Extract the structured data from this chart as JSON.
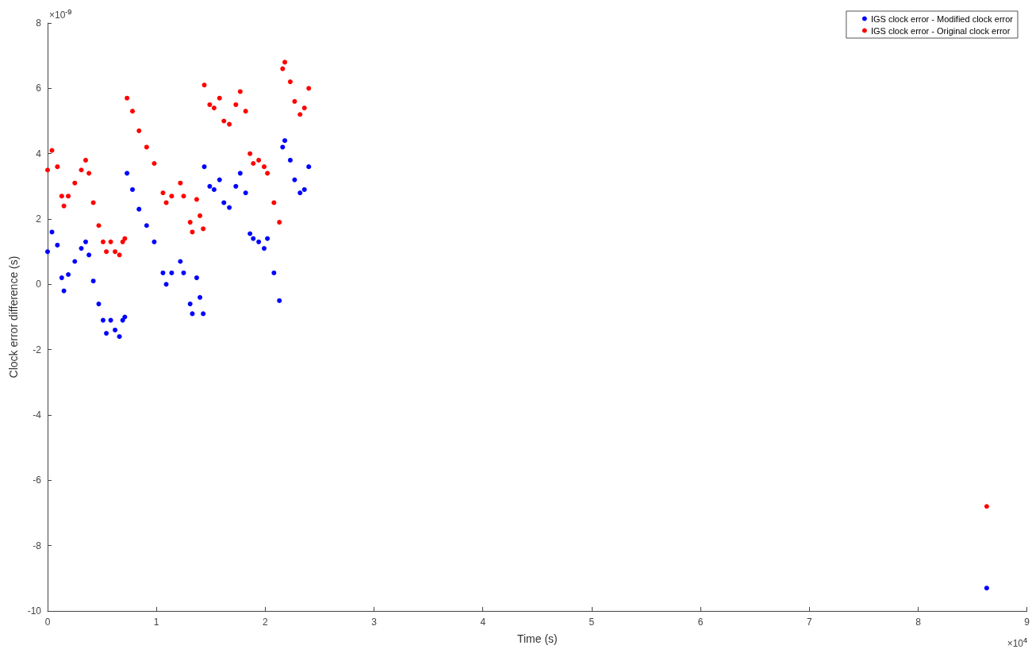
{
  "chart_data": {
    "type": "scatter",
    "xlabel": "Time (s)",
    "ylabel": "Clock error difference (s)",
    "xlim": [
      0,
      9
    ],
    "xticks": [
      0,
      1,
      2,
      3,
      4,
      5,
      6,
      7,
      8,
      9
    ],
    "ylim": [
      -10,
      8
    ],
    "yticks": [
      -10,
      -8,
      -6,
      -4,
      -2,
      0,
      2,
      4,
      6,
      8
    ],
    "annotations": [
      "×10$^{-9}$",
      "×10$^{4}$"
    ],
    "grid": false,
    "legend": "top right",
    "marker": "circle",
    "series": [
      {
        "name": "IGS clock error - Modified clock error",
        "color": "#0000ff",
        "x": [
          0,
          0.04,
          0.09,
          0.13,
          0.15,
          0.19,
          0.25,
          0.31,
          0.35,
          0.38,
          0.42,
          0.47,
          0.51,
          0.54,
          0.58,
          0.62,
          0.66,
          0.69,
          0.71,
          0.73,
          0.78,
          0.84,
          0.91,
          0.98,
          1.06,
          1.09,
          1.14,
          1.22,
          1.25,
          1.31,
          1.33,
          1.37,
          1.4,
          1.43,
          1.44,
          1.49,
          1.53,
          1.58,
          1.62,
          1.67,
          1.73,
          1.77,
          1.82,
          1.86,
          1.89,
          1.94,
          1.99,
          2.02,
          2.08,
          2.13,
          2.16,
          2.18,
          2.23,
          2.27,
          2.32,
          2.36,
          2.4,
          8.63
        ],
        "values": [
          1.0,
          1.6,
          1.2,
          0.2,
          -0.2,
          0.3,
          0.7,
          1.1,
          1.3,
          0.9,
          0.1,
          -0.6,
          -1.1,
          -1.5,
          -1.1,
          -1.4,
          -1.6,
          -1.1,
          -1.0,
          3.4,
          2.9,
          2.3,
          1.8,
          1.3,
          0.35,
          0,
          0.35,
          0.7,
          0.35,
          -0.6,
          -0.9,
          0.2,
          -0.4,
          -0.9,
          3.6,
          3.0,
          2.9,
          3.2,
          2.5,
          2.35,
          3.0,
          3.4,
          2.8,
          1.55,
          1.4,
          1.3,
          1.1,
          1.4,
          0.35,
          -0.5,
          4.2,
          4.4,
          3.8,
          3.2,
          2.8,
          2.9,
          3.6,
          -9.3
        ]
      },
      {
        "name": "IGS clock error - Original clock error",
        "color": "#ff0000",
        "x": [
          0,
          0.04,
          0.09,
          0.13,
          0.15,
          0.19,
          0.25,
          0.31,
          0.35,
          0.38,
          0.42,
          0.47,
          0.51,
          0.54,
          0.58,
          0.62,
          0.66,
          0.69,
          0.71,
          0.73,
          0.78,
          0.84,
          0.91,
          0.98,
          1.06,
          1.09,
          1.14,
          1.22,
          1.25,
          1.31,
          1.33,
          1.37,
          1.4,
          1.43,
          1.44,
          1.49,
          1.53,
          1.58,
          1.62,
          1.67,
          1.73,
          1.77,
          1.82,
          1.86,
          1.89,
          1.94,
          1.99,
          2.02,
          2.08,
          2.13,
          2.16,
          2.18,
          2.23,
          2.27,
          2.32,
          2.36,
          2.4,
          8.63
        ],
        "values": [
          3.5,
          4.1,
          3.6,
          2.7,
          2.4,
          2.7,
          3.1,
          3.5,
          3.8,
          3.4,
          2.5,
          1.8,
          1.3,
          1.0,
          1.3,
          1.0,
          0.9,
          1.3,
          1.4,
          5.7,
          5.3,
          4.7,
          4.2,
          3.7,
          2.8,
          2.5,
          2.7,
          3.1,
          2.7,
          1.9,
          1.6,
          2.6,
          2.1,
          1.7,
          6.1,
          5.5,
          5.4,
          5.7,
          5.0,
          4.9,
          5.5,
          5.9,
          5.3,
          4.0,
          3.7,
          3.8,
          3.6,
          3.4,
          2.5,
          1.9,
          6.6,
          6.8,
          6.2,
          5.6,
          5.2,
          5.4,
          6.0,
          -6.8
        ]
      }
    ]
  }
}
